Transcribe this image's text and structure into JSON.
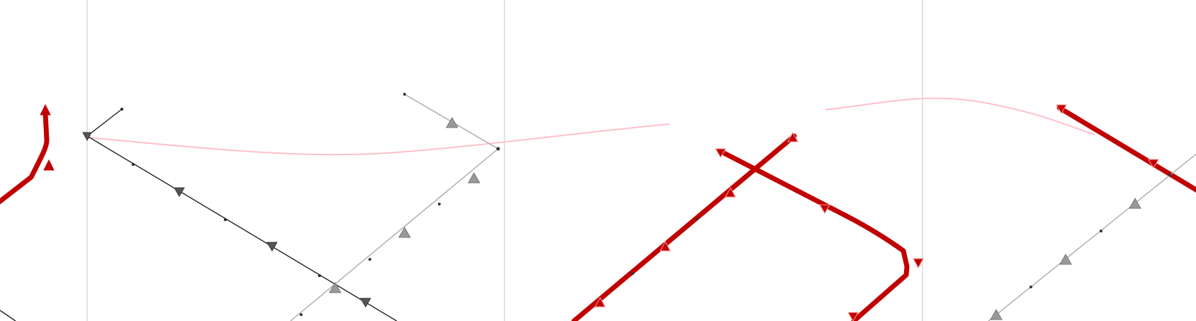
{
  "colors": {
    "background": "#ffffff",
    "grid": "#d9d9d9",
    "route_red": "#c00000",
    "route_black": "#222222",
    "route_gray": "#aaaaaa",
    "route_pink": "#ffc0cb",
    "marker_gray": "#999999",
    "marker_dark": "#555555"
  },
  "map": {
    "legend": "none",
    "labels": "none",
    "grid": true
  }
}
